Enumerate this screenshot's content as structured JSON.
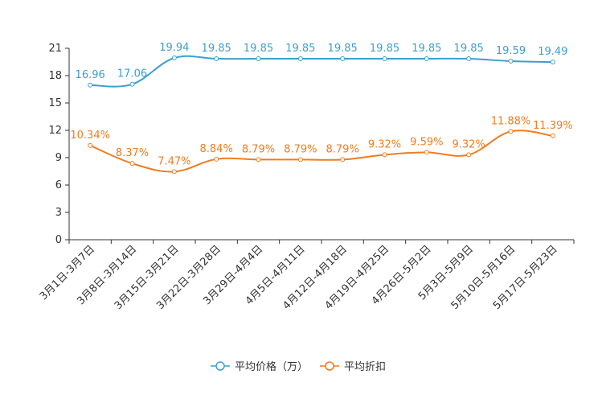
{
  "chart_data": {
    "type": "line",
    "title": "",
    "xlabel": "",
    "ylabel": "",
    "ylim": [
      0,
      21
    ],
    "yticks": [
      0,
      3,
      6,
      9,
      12,
      15,
      18,
      21
    ],
    "grid": false,
    "legend_position": "bottom-center",
    "categories": [
      "3月1日-3月7日",
      "3月8日-3月14日",
      "3月15日-3月21日",
      "3月22日-3月28日",
      "3月29日-4月4日",
      "4月5日-4月11日",
      "4月12日-4月18日",
      "4月19日-4月25日",
      "4月26日-5月2日",
      "5月3日-5月9日",
      "5月10日-5月16日",
      "5月17日-5月23日"
    ],
    "series": [
      {
        "name": "平均价格（万）",
        "color": "#3c9fce",
        "values": [
          16.96,
          17.06,
          19.94,
          19.85,
          19.85,
          19.85,
          19.85,
          19.85,
          19.85,
          19.85,
          19.59,
          19.49
        ],
        "labels": [
          "16.96",
          "17.06",
          "19.94",
          "19.85",
          "19.85",
          "19.85",
          "19.85",
          "19.85",
          "19.85",
          "19.85",
          "19.59",
          "19.49"
        ]
      },
      {
        "name": "平均折扣",
        "color": "#f07c1e",
        "values": [
          10.34,
          8.37,
          7.47,
          8.84,
          8.79,
          8.79,
          8.79,
          9.32,
          9.59,
          9.32,
          11.88,
          11.39
        ],
        "labels": [
          "10.34%",
          "8.37%",
          "7.47%",
          "8.84%",
          "8.79%",
          "8.79%",
          "8.79%",
          "9.32%",
          "9.59%",
          "9.32%",
          "11.88%",
          "11.39%"
        ]
      }
    ]
  }
}
